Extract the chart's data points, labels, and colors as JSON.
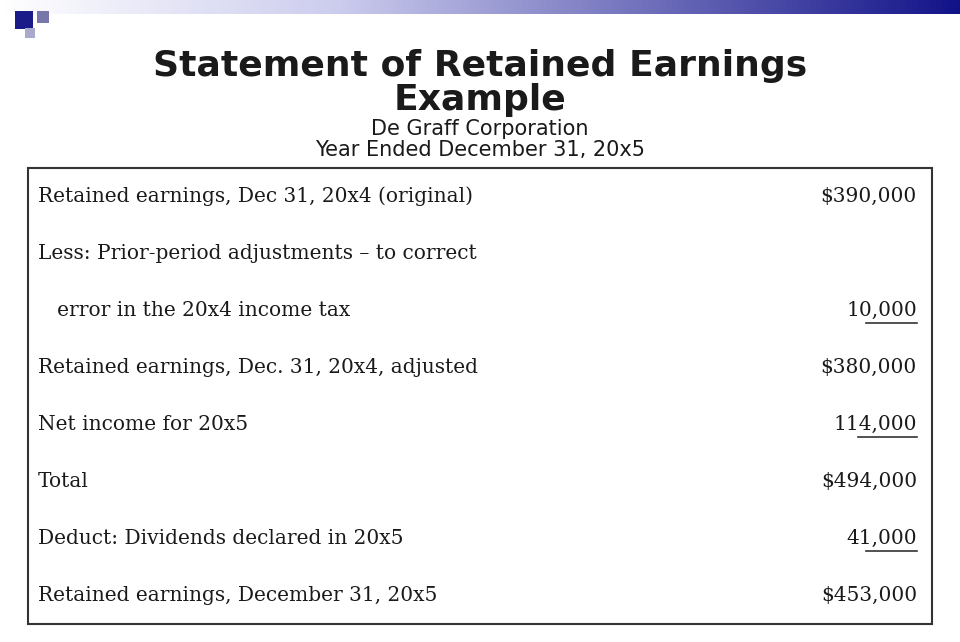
{
  "title_line1": "Statement of Retained Earnings",
  "title_line2": "Example",
  "subtitle_line1": "De Graff Corporation",
  "subtitle_line2": "Year Ended December 31, 20x5",
  "rows": [
    {
      "label": "Retained earnings, Dec 31, 20x4 (original)",
      "value": "$390,000",
      "underline": false,
      "indent": false
    },
    {
      "label": "Less: Prior-period adjustments – to correct",
      "value": "",
      "underline": false,
      "indent": false
    },
    {
      "label": "   error in the 20x4 income tax",
      "value": "10,000",
      "underline": true,
      "indent": true
    },
    {
      "label": "Retained earnings, Dec. 31, 20x4, adjusted",
      "value": "$380,000",
      "underline": false,
      "indent": false
    },
    {
      "label": "Net income for 20x5",
      "value": "114,000",
      "underline": true,
      "indent": false
    },
    {
      "label": "Total",
      "value": "$494,000",
      "underline": false,
      "indent": false
    },
    {
      "label": "Deduct: Dividends declared in 20x5",
      "value": "41,000",
      "underline": true,
      "indent": false
    },
    {
      "label": "Retained earnings, December 31, 20x5",
      "value": "$453,000",
      "underline": false,
      "indent": false
    }
  ],
  "bg_color": "#ffffff",
  "text_color": "#1a1a1a",
  "table_border_color": "#333333",
  "title_fontsize": 26,
  "subtitle_fontsize": 15,
  "row_fontsize": 14.5,
  "deco_bar_color": "#2222aa",
  "deco_bar_gradient_start": "#aaaacc",
  "deco_sq1_color": "#1a1a88",
  "deco_sq2_color": "#8888bb",
  "deco_sq3_color": "#aaaacc"
}
